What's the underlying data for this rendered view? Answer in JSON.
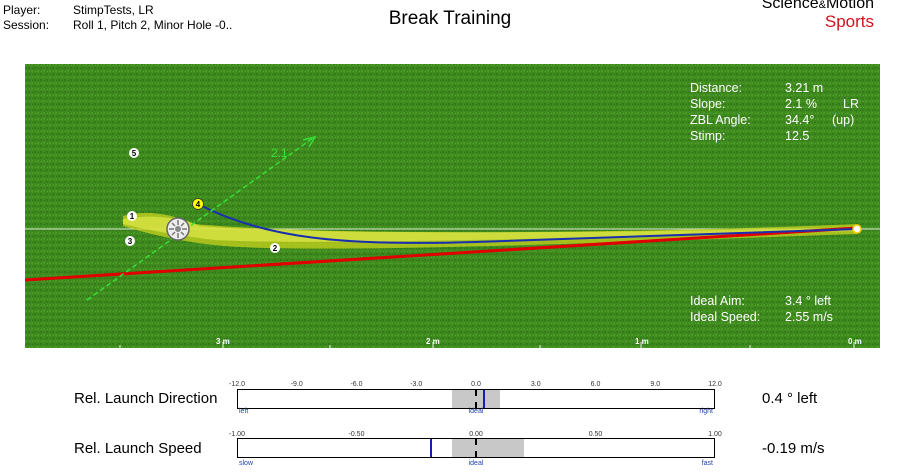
{
  "header": {
    "player_label": "Player:",
    "player_value": "StimpTests, LR",
    "session_label": "Session:",
    "session_value": "Roll 1, Pitch 2, Minor Hole -0..",
    "title": "Break Training",
    "logo_part1": "Science",
    "logo_amp": "&",
    "logo_part2": "Motion",
    "logo_sports": "Sports"
  },
  "green": {
    "info": {
      "distance_label": "Distance:",
      "distance_value": "3.21 m",
      "slope_label": "Slope:",
      "slope_value": "2.1 %",
      "slope_dir": "LR",
      "zbl_label": "ZBL Angle:",
      "zbl_value": "34.4°",
      "zbl_dir": "(up)",
      "stimp_label": "Stimp:",
      "stimp_value": "12.5"
    },
    "ideal": {
      "aim_label": "Ideal Aim:",
      "aim_value": "3.4 ° left",
      "speed_label": "Ideal Speed:",
      "speed_value": "2.55 m/s"
    },
    "slope_arrow_label": "2.1",
    "distance_marks": [
      "3 m",
      "2 m",
      "1 m",
      "0 m"
    ],
    "putt_markers": [
      "1",
      "2",
      "3",
      "4",
      "5"
    ],
    "colors": {
      "green": "#3f8a1f",
      "ideal_line": "#e00000",
      "putt_path": "#1a2fb0",
      "slope_arrow": "#35e035"
    }
  },
  "meters": {
    "direction": {
      "label": "Rel. Launch Direction",
      "result": "0.4 ° left",
      "ticks": [
        "-12.0",
        "-9.0",
        "-6.0",
        "-3.0",
        "0.0",
        "3.0",
        "6.0",
        "9.0",
        "12.0"
      ],
      "left_end": "left",
      "mid": "ideal",
      "right_end": "right",
      "value": 0.4,
      "range": [
        -12,
        12
      ],
      "tolerance": [
        -1.2,
        1.2
      ]
    },
    "speed": {
      "label": "Rel. Launch Speed",
      "result": "-0.19 m/s",
      "ticks": [
        "-1.00",
        "-0.50",
        "0.00",
        "0.50",
        "1.00"
      ],
      "left_end": "slow",
      "mid": "ideal",
      "right_end": "fast",
      "value": -0.19,
      "range": [
        -1,
        1
      ],
      "tolerance": [
        -0.1,
        0.2
      ]
    }
  }
}
